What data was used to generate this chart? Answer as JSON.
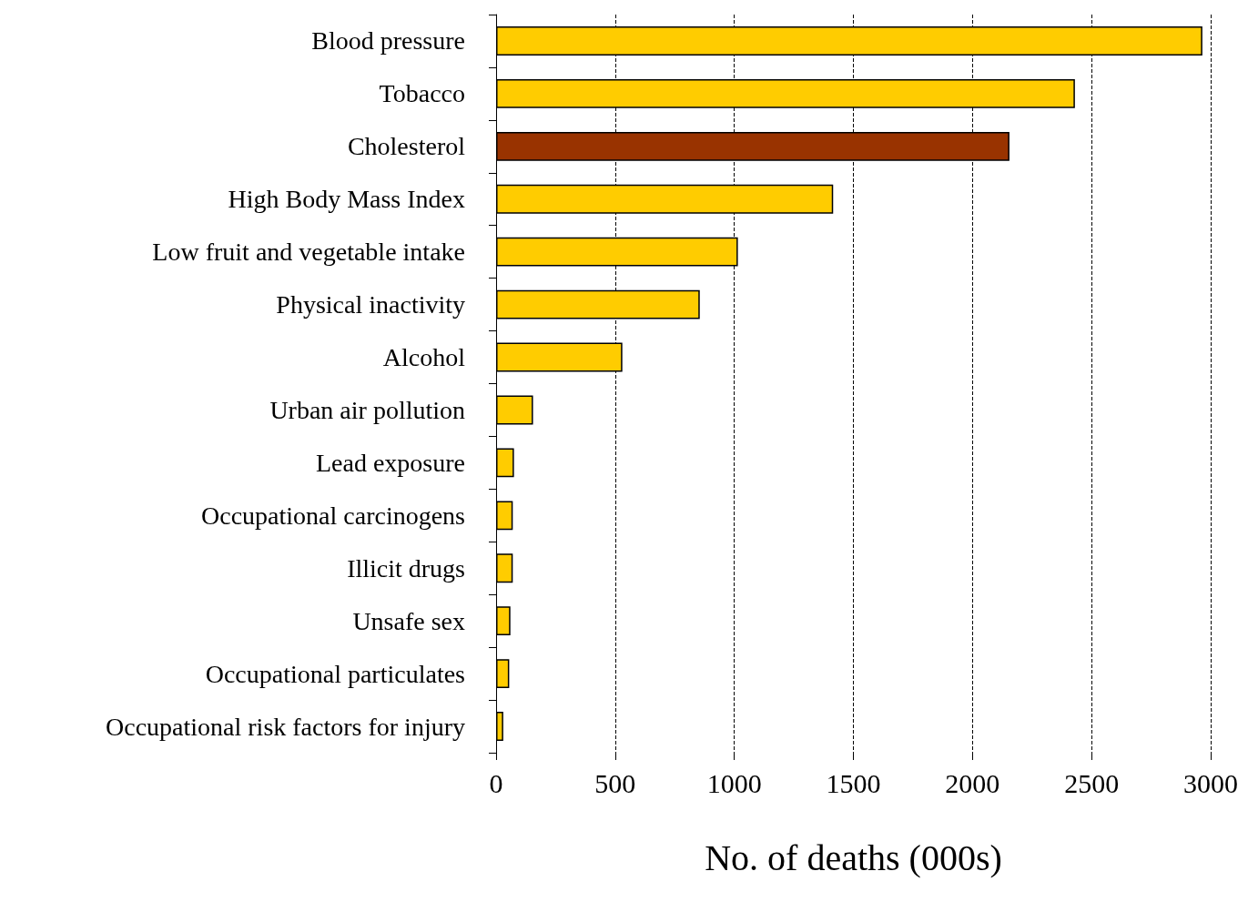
{
  "chart_data": {
    "type": "bar",
    "orientation": "horizontal",
    "xlabel": "No. of deaths (000s)",
    "categories": [
      "Blood pressure",
      "Tobacco",
      "Cholesterol",
      "High Body Mass Index",
      "Low fruit and vegetable intake",
      "Physical inactivity",
      "Alcohol",
      "Urban air pollution",
      "Lead exposure",
      "Occupational carcinogens",
      "Illicit drugs",
      "Unsafe sex",
      "Occupational particulates",
      "Occupational risk factors for injury"
    ],
    "values": [
      2965,
      2430,
      2155,
      1415,
      1015,
      855,
      530,
      155,
      75,
      70,
      70,
      60,
      55,
      30
    ],
    "colors": [
      "#ffcc00",
      "#ffcc00",
      "#993300",
      "#ffcc00",
      "#ffcc00",
      "#ffcc00",
      "#ffcc00",
      "#ffcc00",
      "#ffcc00",
      "#ffcc00",
      "#ffcc00",
      "#ffcc00",
      "#ffcc00",
      "#ffcc00"
    ],
    "xlim": [
      0,
      3000
    ],
    "xticks": [
      0,
      500,
      1000,
      1500,
      2000,
      2500,
      3000
    ],
    "grid": "x"
  }
}
